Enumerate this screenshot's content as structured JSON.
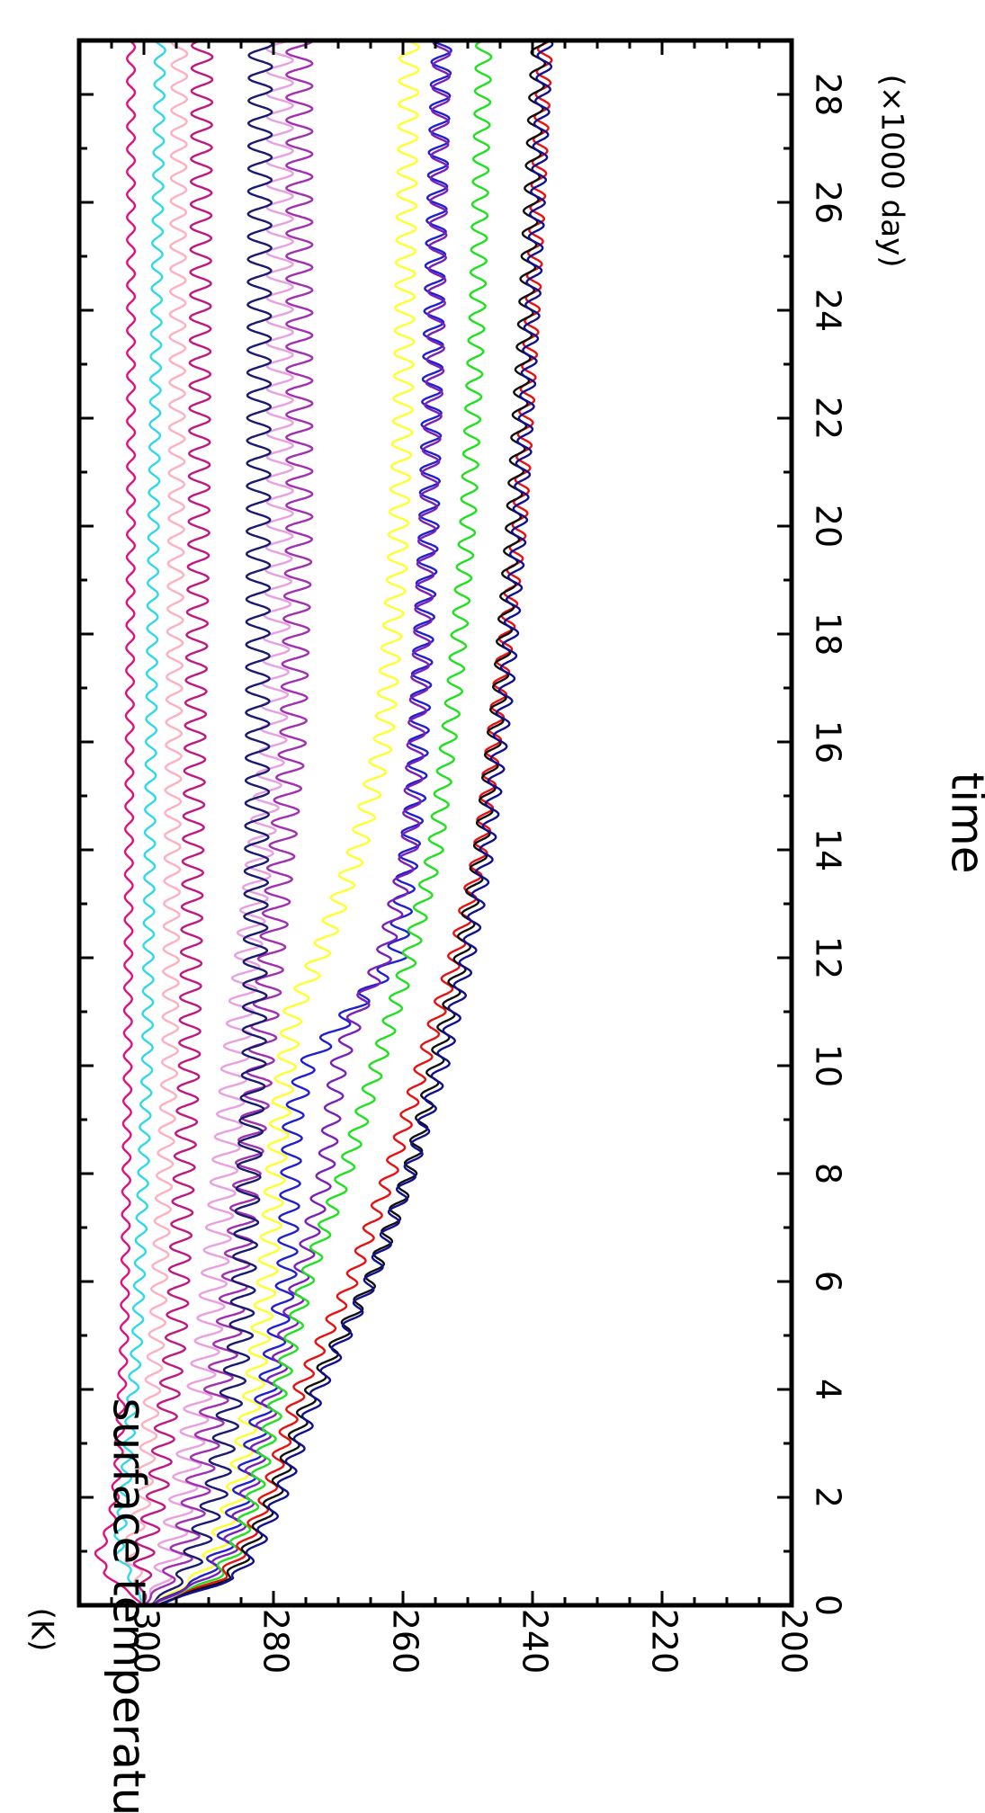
{
  "chart_data": {
    "type": "line",
    "xlabel": "time",
    "ylabel": "surface temperature",
    "x_unit_label": "(×1000 day)",
    "y_unit_label": "(K)",
    "xlim": [
      0,
      29
    ],
    "ylim": [
      200,
      310
    ],
    "x_ticks": [
      0,
      2,
      4,
      6,
      8,
      10,
      12,
      14,
      16,
      18,
      20,
      22,
      24,
      26,
      28
    ],
    "y_ticks": [
      200,
      220,
      240,
      260,
      280,
      300
    ],
    "x_tick_labels": [
      "0",
      "2",
      "4",
      "6",
      "8",
      "10",
      "12",
      "14",
      "16",
      "18",
      "20",
      "22",
      "24",
      "26",
      "28"
    ],
    "y_tick_labels": [
      "200",
      "220",
      "240",
      "260",
      "280",
      "300"
    ],
    "grid": false,
    "orientation": "rotated 90 degrees clockwise",
    "series": [
      {
        "color": "#e0107f",
        "amplitude": 0.6,
        "points": [
          [
            0,
            300
          ],
          [
            0.3,
            303
          ],
          [
            0.6,
            306
          ],
          [
            1,
            307
          ],
          [
            1.5,
            305
          ],
          [
            2.5,
            304
          ],
          [
            5,
            303
          ],
          [
            10,
            302.5
          ],
          [
            20,
            302
          ],
          [
            29,
            302
          ]
        ]
      },
      {
        "color": "#30d8e8",
        "amplitude": 0.8,
        "points": [
          [
            0,
            300
          ],
          [
            0.5,
            302
          ],
          [
            1,
            304
          ],
          [
            2,
            303
          ],
          [
            5,
            301
          ],
          [
            10,
            299.5
          ],
          [
            20,
            298.5
          ],
          [
            29,
            297.5
          ]
        ]
      },
      {
        "color": "#ffb0c0",
        "amplitude": 1.2,
        "points": [
          [
            0,
            300
          ],
          [
            0.5,
            301
          ],
          [
            1,
            302
          ],
          [
            2,
            300
          ],
          [
            5,
            298
          ],
          [
            10,
            296
          ],
          [
            20,
            295
          ],
          [
            29,
            294.5
          ]
        ]
      },
      {
        "color": "#c01880",
        "amplitude": 1.6,
        "points": [
          [
            0,
            300
          ],
          [
            0.5,
            300
          ],
          [
            1,
            300
          ],
          [
            2,
            298
          ],
          [
            5,
            295
          ],
          [
            10,
            293
          ],
          [
            20,
            291.5
          ],
          [
            29,
            291
          ]
        ]
      },
      {
        "color": "#e8a0e0",
        "amplitude": 2.0,
        "points": [
          [
            0,
            300
          ],
          [
            0.5,
            297
          ],
          [
            1,
            296
          ],
          [
            2,
            294
          ],
          [
            5,
            290
          ],
          [
            10,
            286
          ],
          [
            16,
            280
          ],
          [
            20,
            279
          ],
          [
            29,
            279
          ]
        ]
      },
      {
        "color": "#a030b0",
        "amplitude": 2.0,
        "points": [
          [
            0,
            300
          ],
          [
            0.5,
            296
          ],
          [
            1,
            294
          ],
          [
            2,
            292
          ],
          [
            5,
            287
          ],
          [
            10,
            282
          ],
          [
            16,
            277
          ],
          [
            20,
            276
          ],
          [
            29,
            276
          ]
        ]
      },
      {
        "color": "#1a1a70",
        "amplitude": 1.8,
        "points": [
          [
            0,
            299
          ],
          [
            0.5,
            294
          ],
          [
            1,
            292
          ],
          [
            2,
            289
          ],
          [
            5,
            285
          ],
          [
            10,
            283
          ],
          [
            15,
            282.5
          ],
          [
            29,
            282
          ]
        ]
      },
      {
        "color": "#ffff30",
        "amplitude": 1.5,
        "points": [
          [
            0,
            299
          ],
          [
            0.5,
            292
          ],
          [
            1,
            289
          ],
          [
            2,
            286
          ],
          [
            4,
            283
          ],
          [
            6,
            281
          ],
          [
            9,
            279
          ],
          [
            11,
            277
          ],
          [
            12,
            273
          ],
          [
            14,
            267
          ],
          [
            16,
            263
          ],
          [
            19,
            261
          ],
          [
            22,
            260
          ],
          [
            29,
            259
          ]
        ]
      },
      {
        "color": "#2020d0",
        "amplitude": 1.5,
        "points": [
          [
            0,
            299
          ],
          [
            0.5,
            291
          ],
          [
            1,
            288
          ],
          [
            2,
            285
          ],
          [
            4,
            281
          ],
          [
            6,
            278
          ],
          [
            9,
            277
          ],
          [
            10,
            275
          ],
          [
            11,
            268
          ],
          [
            12,
            261
          ],
          [
            15,
            258
          ],
          [
            20,
            256
          ],
          [
            25,
            255
          ],
          [
            29,
            254
          ]
        ]
      },
      {
        "color": "#7a20b8",
        "amplitude": 1.3,
        "points": [
          [
            0,
            299
          ],
          [
            0.5,
            290
          ],
          [
            1,
            287
          ],
          [
            2,
            284
          ],
          [
            4,
            280
          ],
          [
            6,
            276
          ],
          [
            8,
            272
          ],
          [
            10,
            270
          ],
          [
            11,
            267
          ],
          [
            12,
            263
          ],
          [
            14,
            259
          ],
          [
            18,
            257
          ],
          [
            23,
            255
          ],
          [
            29,
            254
          ]
        ]
      },
      {
        "color": "#20e020",
        "amplitude": 1.2,
        "points": [
          [
            0,
            298
          ],
          [
            0.5,
            289
          ],
          [
            1,
            286
          ],
          [
            2,
            283
          ],
          [
            4,
            279
          ],
          [
            6,
            275
          ],
          [
            8,
            269
          ],
          [
            10,
            264
          ],
          [
            12,
            259
          ],
          [
            14,
            255
          ],
          [
            17,
            252
          ],
          [
            20,
            250
          ],
          [
            24,
            248.5
          ],
          [
            29,
            247.5
          ]
        ]
      },
      {
        "color": "#e81010",
        "amplitude": 1.1,
        "points": [
          [
            0,
            298
          ],
          [
            0.5,
            288
          ],
          [
            1,
            285
          ],
          [
            2,
            281
          ],
          [
            4,
            276
          ],
          [
            6,
            268
          ],
          [
            8,
            262
          ],
          [
            10,
            257
          ],
          [
            12,
            252
          ],
          [
            14,
            248
          ],
          [
            17,
            245
          ],
          [
            20,
            242
          ],
          [
            24,
            240
          ],
          [
            29,
            238
          ]
        ]
      },
      {
        "color": "#101010",
        "amplitude": 1.1,
        "points": [
          [
            0,
            298
          ],
          [
            0.5,
            287
          ],
          [
            1,
            284
          ],
          [
            2,
            280
          ],
          [
            4,
            274
          ],
          [
            6,
            265
          ],
          [
            8,
            259
          ],
          [
            10,
            255
          ],
          [
            12,
            251
          ],
          [
            14,
            248
          ],
          [
            17,
            245
          ],
          [
            20,
            243
          ],
          [
            24,
            241
          ],
          [
            29,
            239
          ]
        ]
      },
      {
        "color": "#101090",
        "amplitude": 1.1,
        "points": [
          [
            0,
            298
          ],
          [
            0.5,
            286
          ],
          [
            1,
            283
          ],
          [
            2,
            279
          ],
          [
            4,
            273
          ],
          [
            6,
            265
          ],
          [
            8,
            259
          ],
          [
            10,
            254
          ],
          [
            12,
            250
          ],
          [
            14,
            247
          ],
          [
            17,
            244
          ],
          [
            20,
            242
          ],
          [
            24,
            240
          ],
          [
            29,
            238
          ]
        ]
      }
    ]
  }
}
